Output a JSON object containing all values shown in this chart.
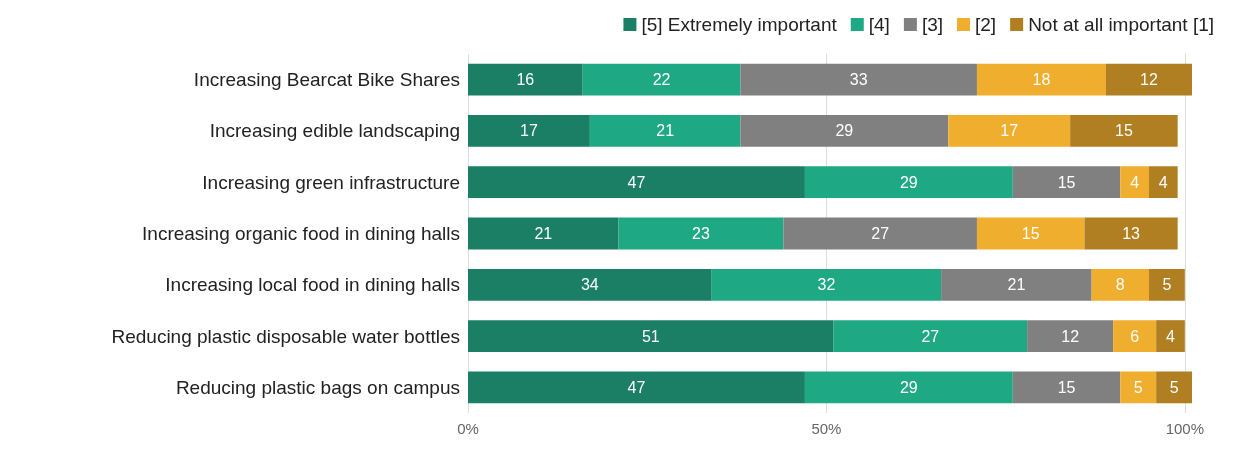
{
  "chart_data": {
    "type": "bar",
    "orientation": "horizontal",
    "stacked": true,
    "data_labels": true,
    "legend": "top right",
    "grid": "x",
    "categories": [
      "Increasing Bearcat Bike Shares",
      "Increasing edible landscaping",
      "Increasing green infrastructure",
      "Increasing organic food in dining halls",
      "Increasing local food in dining halls",
      "Reducing plastic disposable water bottles",
      "Reducing plastic bags on campus"
    ],
    "series": [
      {
        "name": "[5] Extremely important",
        "color": "#1a7f64",
        "values": [
          16,
          17,
          47,
          21,
          34,
          51,
          47
        ]
      },
      {
        "name": "[4]",
        "color": "#1fa884",
        "values": [
          22,
          21,
          29,
          23,
          32,
          27,
          29
        ]
      },
      {
        "name": "[3]",
        "color": "#808080",
        "values": [
          33,
          29,
          15,
          27,
          21,
          12,
          15
        ]
      },
      {
        "name": "[2]",
        "color": "#f0ae2e",
        "values": [
          18,
          17,
          4,
          15,
          8,
          6,
          5
        ]
      },
      {
        "name": "Not at all important [1]",
        "color": "#b07f22",
        "values": [
          12,
          15,
          4,
          13,
          5,
          4,
          5
        ]
      }
    ],
    "xlim": [
      0,
      101
    ],
    "xticks": [
      {
        "value": 0,
        "label": "0%"
      },
      {
        "value": 50,
        "label": "50%"
      },
      {
        "value": 100,
        "label": "100%"
      }
    ]
  }
}
